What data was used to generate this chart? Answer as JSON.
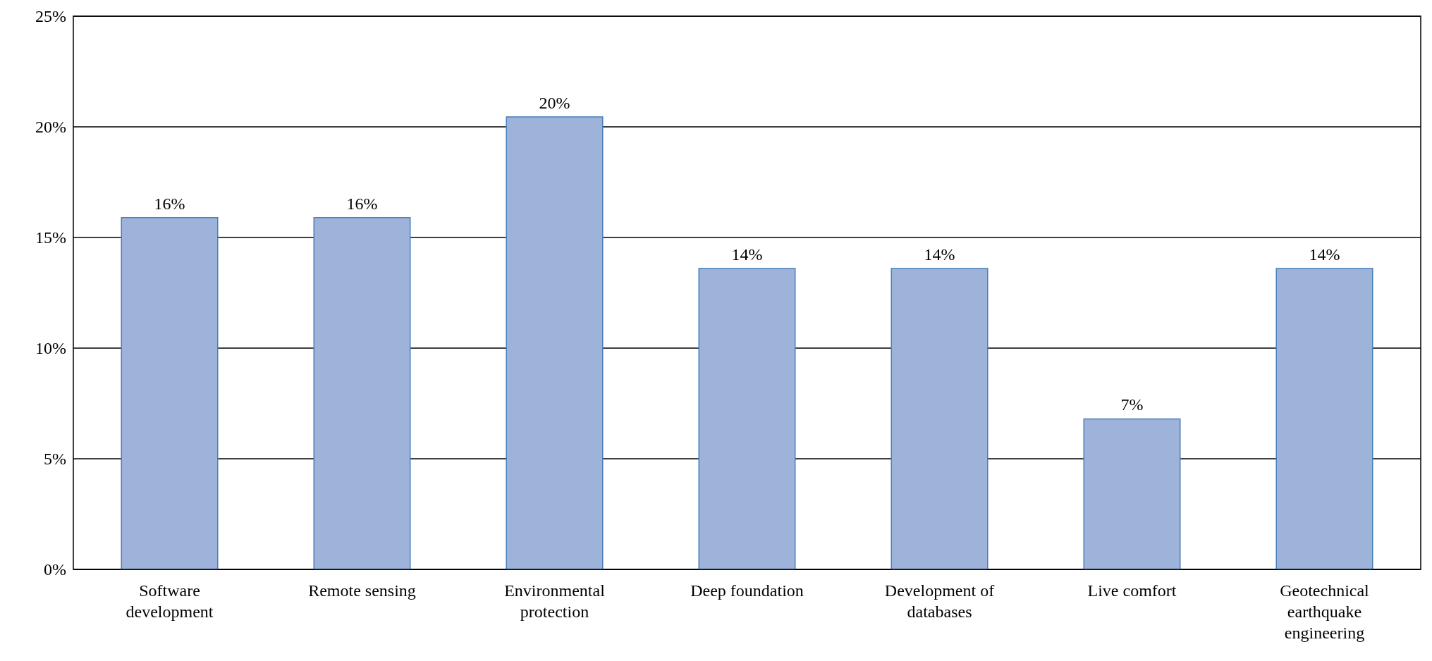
{
  "chart_data": {
    "type": "bar",
    "categories": [
      "Software development",
      "Remote sensing",
      "Environmental protection",
      "Deep foundation",
      "Development of databases",
      "Live comfort",
      "Geotechnical earthquake engineering"
    ],
    "values": [
      15.9,
      15.9,
      20.45,
      13.6,
      13.6,
      6.8,
      13.6
    ],
    "value_labels": [
      "16%",
      "16%",
      "20%",
      "14%",
      "14%",
      "7%",
      "14%"
    ],
    "color": "#9db3da",
    "ylim": [
      0,
      25
    ],
    "yticks": [
      {
        "value": 0,
        "label": "0%"
      },
      {
        "value": 5,
        "label": "5%"
      },
      {
        "value": 10,
        "label": "10%"
      },
      {
        "value": 15,
        "label": "15%"
      },
      {
        "value": 20,
        "label": "20%"
      },
      {
        "value": 25,
        "label": "25%"
      }
    ],
    "grid": "y"
  }
}
